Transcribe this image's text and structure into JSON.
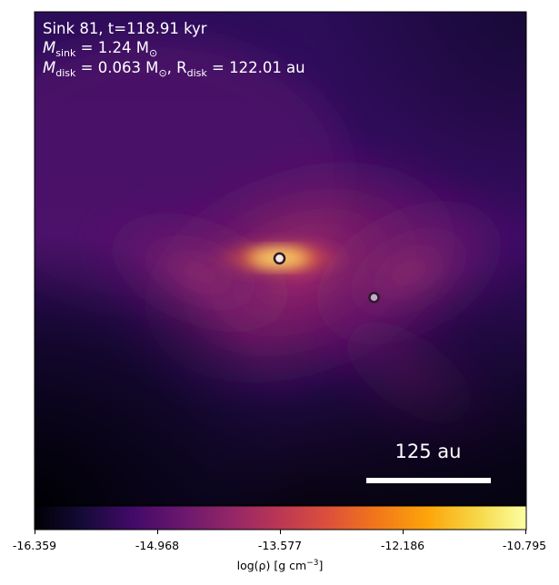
{
  "panel": {
    "line1": "Sink 81, t=118.91 kyr",
    "line2_prefix": "M",
    "line2_sub": "sink",
    "line2_value": " = 1.24 M",
    "line2_unit_sub": "⊙",
    "line3_prefix": "M",
    "line3_sub": "disk",
    "line3_value": " = 0.063 M",
    "line3_unit_sub": "⊙",
    "line3_mid": ", R",
    "line3_sub2": "disk",
    "line3_tail": " = 122.01 au"
  },
  "scalebar": {
    "label": "125 au"
  },
  "colorbar": {
    "ticks": [
      "-16.359",
      "-14.968",
      "-13.577",
      "-12.186",
      "-10.795"
    ],
    "label_prefix": "log(ρ) [g cm",
    "label_exp": "−3",
    "label_suffix": "]"
  },
  "colors": {
    "text": "#ffffff",
    "sink_primary": "#f7e7e1",
    "sink_secondary": "#c9a9c9",
    "sink_outline": "#2b1a2b",
    "scalebar": "#ffffff"
  },
  "colormap": "inferno"
}
